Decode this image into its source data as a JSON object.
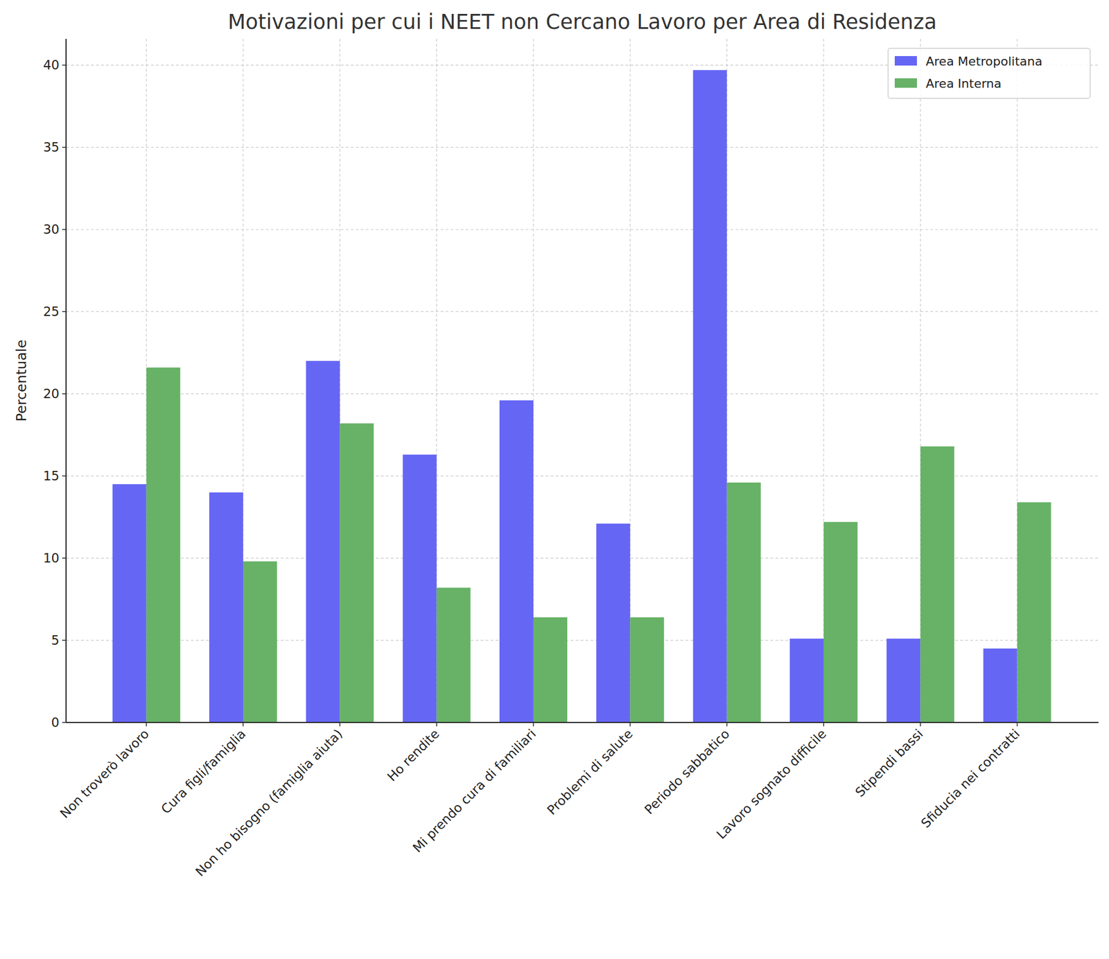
{
  "chart_data": {
    "type": "bar",
    "title": "Motivazioni per cui i NEET non Cercano Lavoro per Area di Residenza",
    "y_label": "Percentuale",
    "categories": [
      "Non troverò lavoro",
      "Cura figli/famiglia",
      "Non ho bisogno (famiglia aiuta)",
      "Ho rendite",
      "Mi prendo cura di familiari",
      "Problemi di salute",
      "Periodo sabbatico",
      "Lavoro sognato difficile",
      "Stipendi bassi",
      "Sfiducia nei contratti"
    ],
    "series": [
      {
        "name": "Area Metropolitana",
        "color": "#6666f5",
        "values": [
          14.5,
          14.0,
          22.0,
          16.3,
          19.6,
          12.1,
          39.7,
          5.1,
          5.1,
          4.5
        ]
      },
      {
        "name": "Area Interna",
        "color": "#67b267",
        "values": [
          21.6,
          9.8,
          18.2,
          8.2,
          6.4,
          6.4,
          14.6,
          12.2,
          16.8,
          13.4
        ]
      }
    ],
    "ylim": [
      0,
      41.6
    ],
    "yticks": [
      0,
      5,
      10,
      15,
      20,
      25,
      30,
      35,
      40
    ],
    "grid": true,
    "legend": "upper-right"
  }
}
